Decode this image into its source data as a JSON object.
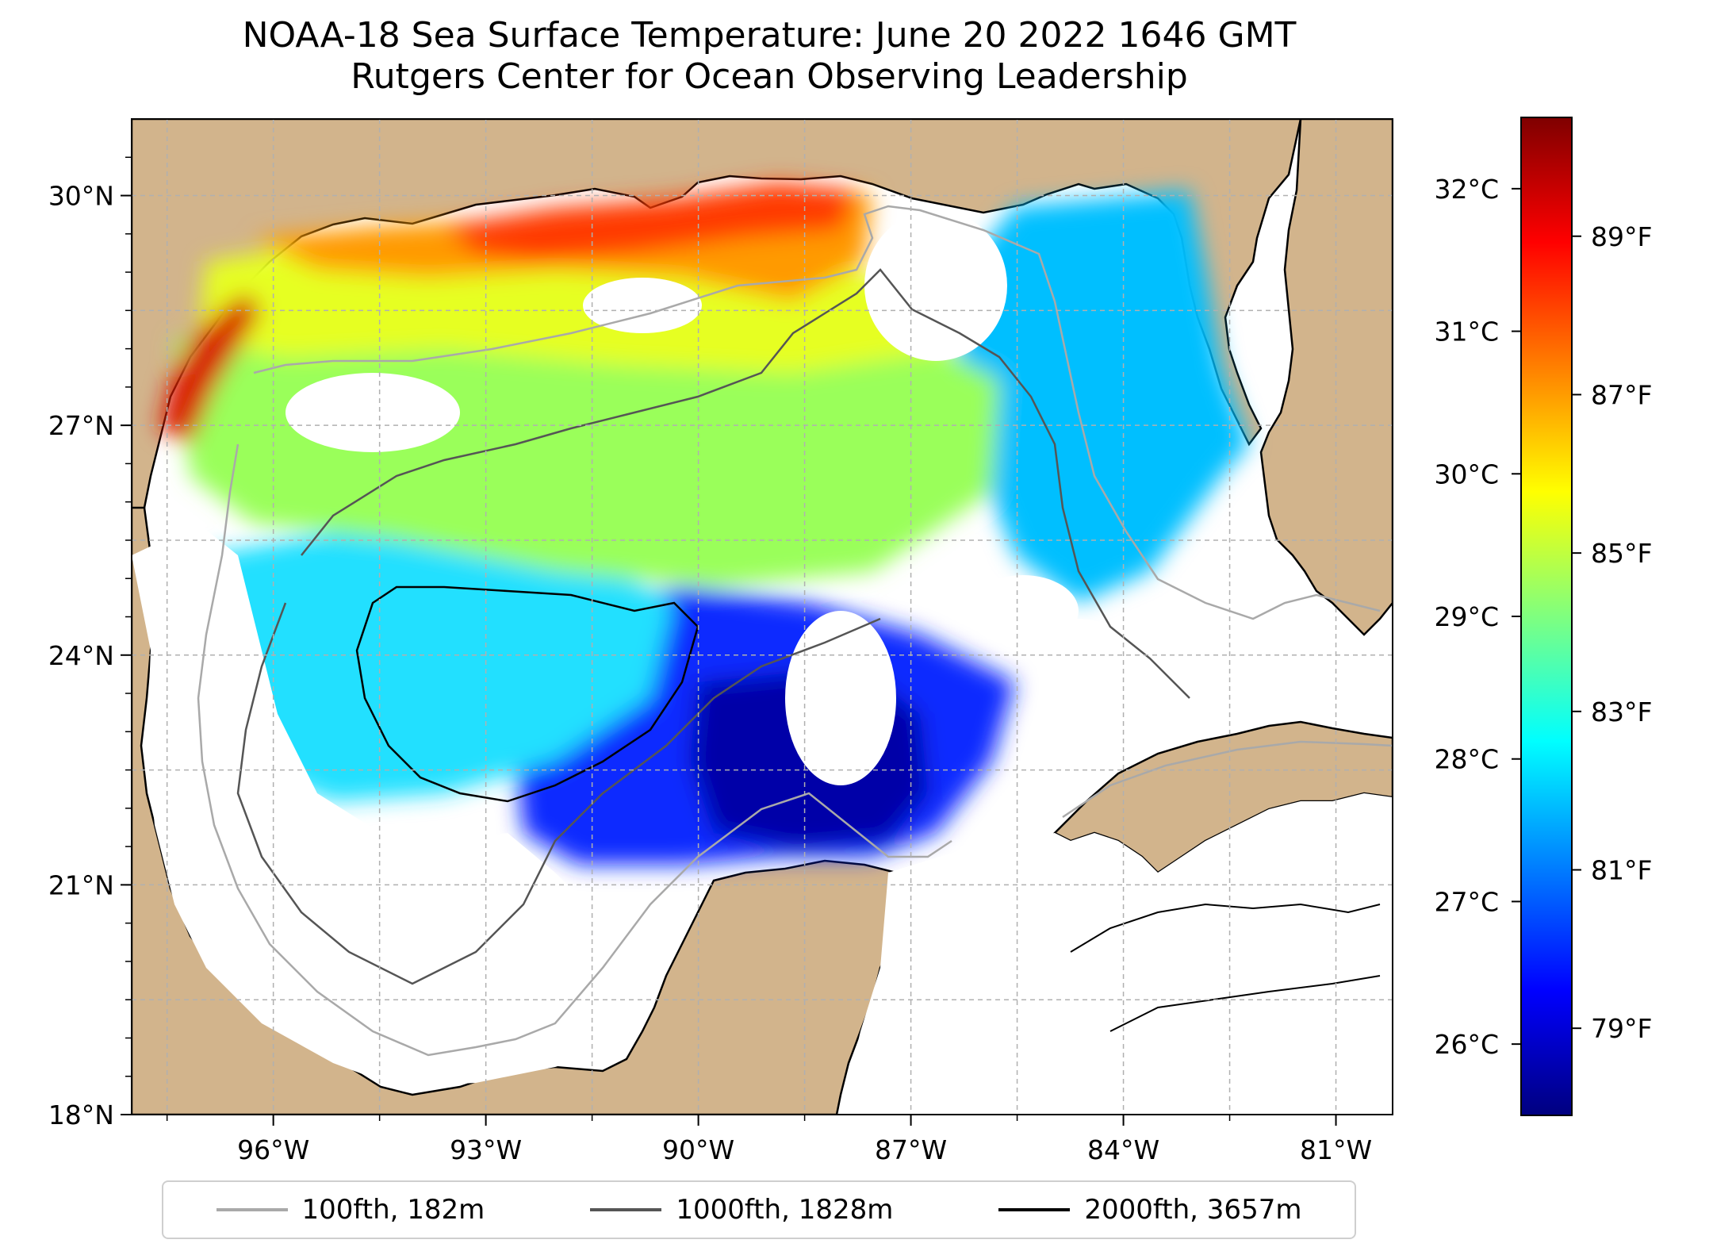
{
  "title_line1": "NOAA-18 Sea Surface Temperature: June 20 2022 1646 GMT",
  "title_line2": "Rutgers Center for Ocean Observing Leadership",
  "map": {
    "lon_range": [
      -98.0,
      -80.2
    ],
    "lat_range": [
      18.0,
      31.0
    ],
    "lon_ticks": [
      {
        "value": -96,
        "label": "96°W"
      },
      {
        "value": -93,
        "label": "93°W"
      },
      {
        "value": -90,
        "label": "90°W"
      },
      {
        "value": -87,
        "label": "87°W"
      },
      {
        "value": -84,
        "label": "84°W"
      },
      {
        "value": -81,
        "label": "81°W"
      }
    ],
    "lat_ticks": [
      {
        "value": 18,
        "label": "18°N"
      },
      {
        "value": 21,
        "label": "21°N"
      },
      {
        "value": 24,
        "label": "24°N"
      },
      {
        "value": 27,
        "label": "27°N"
      },
      {
        "value": 30,
        "label": "30°N"
      }
    ],
    "land_color": "#d2b48c",
    "gridlines": true
  },
  "colorbar": {
    "colormap": "jet",
    "celsius_ticks": [
      {
        "value": 26,
        "label": "26°C"
      },
      {
        "value": 27,
        "label": "27°C"
      },
      {
        "value": 28,
        "label": "28°C"
      },
      {
        "value": 29,
        "label": "29°C"
      },
      {
        "value": 30,
        "label": "30°C"
      },
      {
        "value": 31,
        "label": "31°C"
      },
      {
        "value": 32,
        "label": "32°C"
      }
    ],
    "fahrenheit_ticks": [
      {
        "value": 79,
        "label": "79°F"
      },
      {
        "value": 81,
        "label": "81°F"
      },
      {
        "value": 83,
        "label": "83°F"
      },
      {
        "value": 85,
        "label": "85°F"
      },
      {
        "value": 87,
        "label": "87°F"
      },
      {
        "value": 89,
        "label": "89°F"
      }
    ],
    "range_f": [
      77.9,
      90.5
    ]
  },
  "legend": [
    {
      "label": "100fth, 182m",
      "color": "#a9a9a9"
    },
    {
      "label": "1000fth, 1828m",
      "color": "#555555"
    },
    {
      "label": "2000fth, 3657m",
      "color": "#000000"
    }
  ]
}
